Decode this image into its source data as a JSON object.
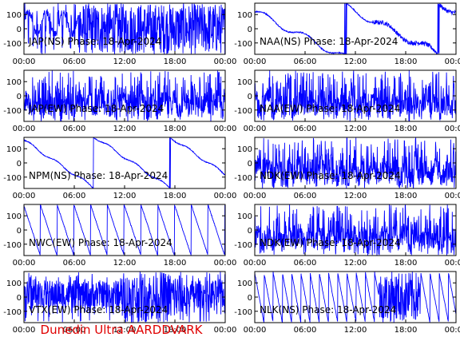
{
  "footer_text": "Dunedin Ultra AARDDVARK",
  "colors": {
    "trace": "#0000ff",
    "frame": "#000000",
    "footer": "#e00000"
  },
  "chart_data": [
    {
      "type": "line",
      "title": "JAP(NS) Phase: 18-Apr-2024",
      "x_ticks": [
        "00:00",
        "06:00",
        "12:00",
        "18:00",
        "00:00"
      ],
      "y_ticks": [
        "100",
        "0",
        "-100"
      ],
      "xlim": [
        0,
        24
      ],
      "ylim": [
        -180,
        180
      ],
      "pattern": "saturated-after-0645"
    },
    {
      "type": "line",
      "title": "NAA(NS) Phase: 18-Apr-2024",
      "x_ticks": [
        "00:00",
        "06:00",
        "12:00",
        "18:00",
        "00:00"
      ],
      "y_ticks": [
        "100",
        "0",
        "-100"
      ],
      "xlim": [
        0,
        24
      ],
      "ylim": [
        -180,
        180
      ],
      "pattern": "slow-drift-wraps"
    },
    {
      "type": "line",
      "title": "JAP(EW) Phase: 18-Apr-2024",
      "x_ticks": [
        "00:00",
        "06:00",
        "12:00",
        "18:00",
        "00:00"
      ],
      "y_ticks": [
        "100",
        "0",
        "-100"
      ],
      "xlim": [
        0,
        24
      ],
      "ylim": [
        -180,
        180
      ],
      "pattern": "dense-noisy"
    },
    {
      "type": "line",
      "title": "NAA(EW) Phase: 18-Apr-2024",
      "x_ticks": [
        "00:00",
        "06:00",
        "12:00",
        "18:00",
        "00:00"
      ],
      "y_ticks": [
        "100",
        "0",
        "-100"
      ],
      "xlim": [
        0,
        24
      ],
      "ylim": [
        -180,
        180
      ],
      "pattern": "dense-noisy"
    },
    {
      "type": "line",
      "title": "NPM(NS) Phase: 18-Apr-2024",
      "x_ticks": [
        "00:00",
        "06:00",
        "12:00",
        "18:00",
        "00:00"
      ],
      "y_ticks": [
        "100",
        "0",
        "-100"
      ],
      "xlim": [
        0,
        24
      ],
      "ylim": [
        -180,
        180
      ],
      "pattern": "slow-ramp-down"
    },
    {
      "type": "line",
      "title": "NDK(EW) Phase: 18-Apr-2024",
      "x_ticks": [
        "00:00",
        "06:00",
        "12:00",
        "18:00",
        "00:00"
      ],
      "y_ticks": [
        "100",
        "0",
        "-100"
      ],
      "xlim": [
        0,
        24
      ],
      "ylim": [
        -180,
        180
      ],
      "pattern": "dense-noisy"
    },
    {
      "type": "line",
      "title": "NWC(EW) Phase: 18-Apr-2024",
      "x_ticks": [
        "00:00",
        "06:00",
        "12:00",
        "18:00",
        "00:00"
      ],
      "y_ticks": [
        "100",
        "0",
        "-100"
      ],
      "xlim": [
        0,
        24
      ],
      "ylim": [
        -180,
        180
      ],
      "pattern": "sawtooth-slow"
    },
    {
      "type": "line",
      "title": "NDK(EW) Phase: 18-Apr-2024",
      "x_ticks": [
        "00:00",
        "06:00",
        "12:00",
        "18:00",
        "00:00"
      ],
      "y_ticks": [
        "100",
        "0",
        "-100"
      ],
      "xlim": [
        0,
        24
      ],
      "ylim": [
        -180,
        180
      ],
      "pattern": "dense-noisy"
    },
    {
      "type": "line",
      "title": "VTX(EW) Phase: 18-Apr-2024",
      "x_ticks": [
        "00:00",
        "06:00",
        "12:00",
        "18:00",
        "00:00"
      ],
      "y_ticks": [
        "100",
        "0",
        "-100"
      ],
      "xlim": [
        0,
        24
      ],
      "ylim": [
        -180,
        180
      ],
      "pattern": "noisy-saturated-mid"
    },
    {
      "type": "line",
      "title": "NLK(NS) Phase: 18-Apr-2024",
      "x_ticks": [
        "00:00",
        "06:00",
        "12:00",
        "18:00",
        "00:00"
      ],
      "y_ticks": [
        "100",
        "0",
        "-100"
      ],
      "xlim": [
        0,
        24
      ],
      "ylim": [
        -180,
        180
      ],
      "pattern": "sawtooth-fast-saturated-afternoon"
    }
  ]
}
